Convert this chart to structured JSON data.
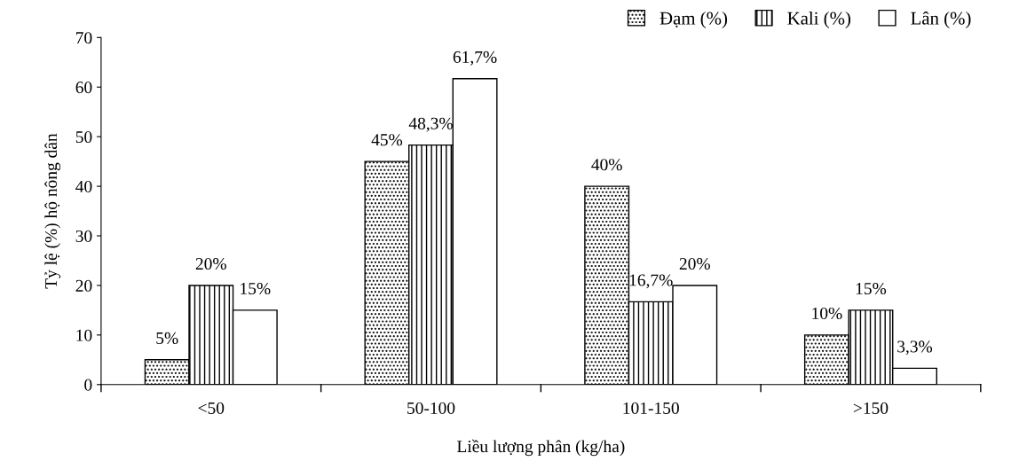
{
  "chart_data": {
    "type": "bar",
    "xlabel": "Liều lượng phân (kg/ha)",
    "ylabel": "Tỷ lệ (%) hộ nông dân",
    "categories": [
      "<50",
      "50-100",
      "101-150",
      ">150"
    ],
    "series": [
      {
        "name": "Đạm (%)",
        "color": "#000000",
        "values": [
          5,
          45,
          40,
          10
        ],
        "value_labels": [
          "5%",
          "45%",
          "40%",
          "10%"
        ]
      },
      {
        "name": "Kali (%)",
        "color": "#000000",
        "values": [
          20,
          48.3,
          16.7,
          15
        ],
        "value_labels": [
          "20%",
          "48,3%",
          "16,7%",
          "15%"
        ]
      },
      {
        "name": "Lân (%)",
        "color": "#ffffff",
        "values": [
          15,
          61.7,
          20,
          3.3
        ],
        "value_labels": [
          "15%",
          "61,7%",
          "20%",
          "3,3%"
        ]
      }
    ],
    "ylim": [
      0,
      70
    ],
    "yticks": [
      0,
      10,
      20,
      30,
      40,
      50,
      60,
      70
    ],
    "grid": false,
    "legend": "top right"
  }
}
